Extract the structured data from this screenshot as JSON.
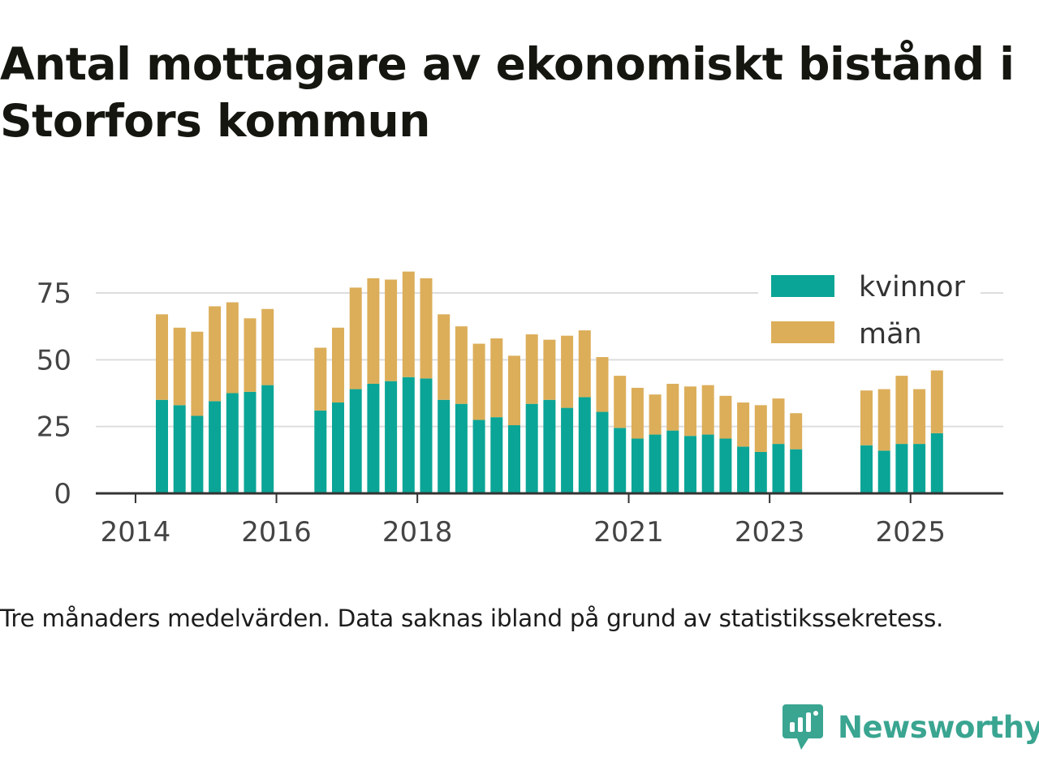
{
  "title": "Antal mottagare av ekonomiskt bistånd i Storfors kommun",
  "note": "Tre månaders medelvärden. Data saknas ibland på grund av statistikssekretess.",
  "brand": "Newsworthy",
  "colors": {
    "kvinnor": "#0aa596",
    "man": "#dcae5a",
    "grid": "#dddddd",
    "axis": "#333333",
    "brand": "#3aa591"
  },
  "chart_data": {
    "type": "bar",
    "stacked": true,
    "title": "Antal mottagare av ekonomiskt bistånd i Storfors kommun",
    "xlabel": "",
    "ylabel": "",
    "ylim": [
      0,
      85
    ],
    "yticks": [
      0,
      25,
      50,
      75
    ],
    "xticks": [
      "2014",
      "2016",
      "2018",
      "2021",
      "2023",
      "2025"
    ],
    "legend_position": "top-right",
    "categories": [
      "2014-Q2",
      "2014-Q3",
      "2014-Q4",
      "2015-Q1",
      "2015-Q2",
      "2015-Q3",
      "2015-Q4",
      "2016-Q1",
      "2016-Q2",
      "2016-Q3",
      "2016-Q4",
      "2017-Q1",
      "2017-Q2",
      "2017-Q3",
      "2017-Q4",
      "2018-Q1",
      "2018-Q2",
      "2018-Q3",
      "2018-Q4",
      "2019-Q1",
      "2019-Q2",
      "2019-Q3",
      "2019-Q4",
      "2020-Q1",
      "2020-Q2",
      "2020-Q3",
      "2020-Q4",
      "2021-Q1",
      "2021-Q2",
      "2021-Q3",
      "2021-Q4",
      "2022-Q1",
      "2022-Q2",
      "2022-Q3",
      "2022-Q4",
      "2023-Q1",
      "2023-Q2",
      "2023-Q3",
      "2023-Q4",
      "2024-Q1",
      "2024-Q2",
      "2024-Q3",
      "2024-Q4",
      "2025-Q1",
      "2025-Q2"
    ],
    "series": [
      {
        "name": "kvinnor",
        "values": [
          35,
          33,
          29,
          34.5,
          37.5,
          38,
          40.5,
          null,
          null,
          31,
          34,
          39,
          41,
          42,
          43.5,
          43,
          35,
          33.5,
          27.5,
          28.5,
          25.5,
          33.5,
          35,
          32,
          36,
          30.5,
          24.5,
          20.5,
          22,
          23.5,
          21.5,
          22,
          20.5,
          17.5,
          15.5,
          18.5,
          16.5,
          null,
          null,
          null,
          18,
          16,
          18.5,
          18.5,
          22.5
        ]
      },
      {
        "name": "män",
        "values": [
          32,
          29,
          31.5,
          35.5,
          34,
          27.5,
          28.5,
          null,
          null,
          23.5,
          28,
          38,
          39.5,
          38,
          39.5,
          37.5,
          32,
          29,
          28.5,
          29.5,
          26,
          26,
          22.5,
          27,
          25,
          20.5,
          19.5,
          19,
          15,
          17.5,
          18.5,
          18.5,
          16,
          16.5,
          17.5,
          17,
          13.5,
          null,
          null,
          null,
          20.5,
          23,
          25.5,
          20.5,
          23.5
        ]
      }
    ]
  }
}
